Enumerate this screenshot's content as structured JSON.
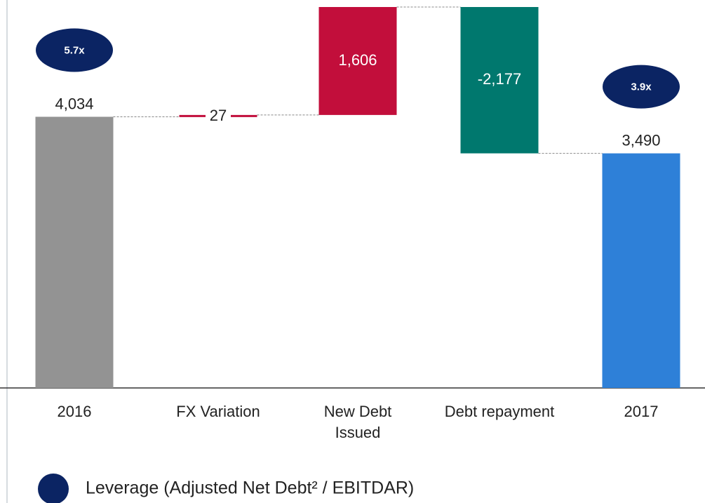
{
  "chart_data": {
    "type": "waterfall",
    "categories": [
      "2016",
      "FX Variation",
      "New Debt\nIssued",
      "Debt repayment",
      "2017"
    ],
    "values": [
      4034,
      27,
      1606,
      -2177,
      3490
    ],
    "value_labels": [
      "4,034",
      "27",
      "1,606",
      "-2,177",
      "3,490"
    ],
    "is_total": [
      true,
      false,
      false,
      false,
      true
    ],
    "colors": [
      "#939393",
      "#c20e3b",
      "#c20e3b",
      "#00786e",
      "#2e80d8"
    ],
    "leverage_labels": [
      "5.7x",
      null,
      null,
      null,
      "3.9x"
    ],
    "leverage_color": "#0b2463",
    "legend": "Leverage (Adjusted Net Debt² / EBITDAR)"
  }
}
